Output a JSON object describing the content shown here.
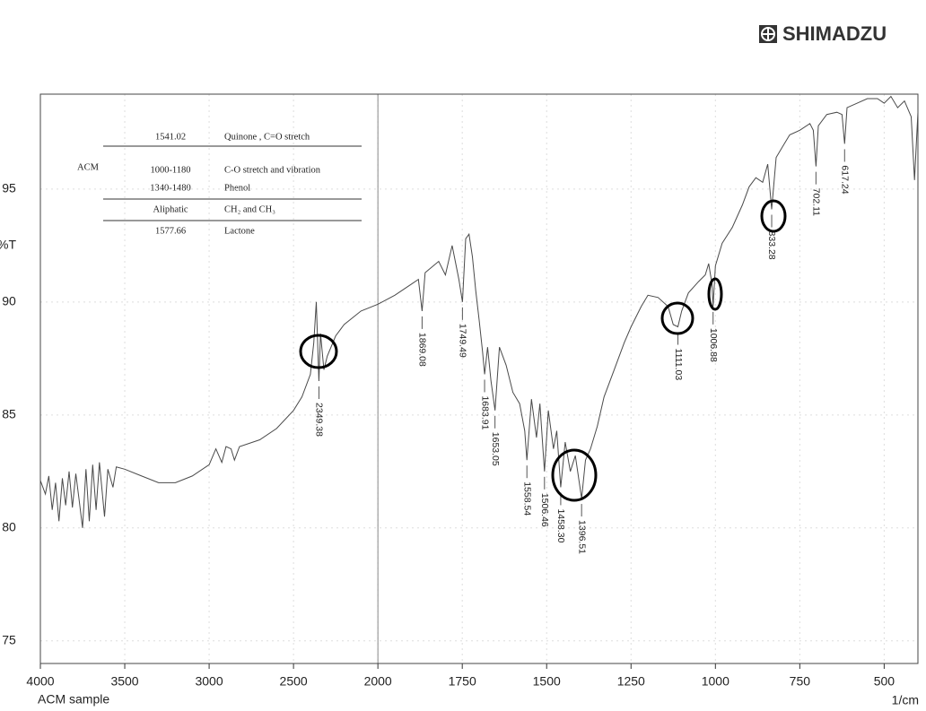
{
  "logo": "SHIMADZU",
  "chart_data": {
    "type": "line",
    "title": "ACM sample",
    "x_label": "1/cm",
    "y_label": "%T",
    "x": [
      4000,
      3970,
      3950,
      3930,
      3910,
      3890,
      3870,
      3850,
      3830,
      3810,
      3790,
      3770,
      3750,
      3730,
      3710,
      3690,
      3670,
      3650,
      3620,
      3600,
      3570,
      3550,
      3500,
      3400,
      3300,
      3200,
      3100,
      3000,
      2960,
      2925,
      2900,
      2870,
      2850,
      2820,
      2700,
      2600,
      2500,
      2450,
      2400,
      2380,
      2365,
      2349.38,
      2340,
      2320,
      2300,
      2250,
      2200,
      2100,
      2000,
      1950,
      1900,
      1880,
      1869.08,
      1860,
      1820,
      1800,
      1780,
      1760,
      1749.49,
      1740,
      1730,
      1720,
      1710,
      1700,
      1690,
      1683.91,
      1675,
      1665,
      1653.05,
      1640,
      1620,
      1600,
      1580,
      1565,
      1558.54,
      1545,
      1530,
      1520,
      1506.46,
      1495,
      1480,
      1470,
      1458.3,
      1445,
      1430,
      1415,
      1396.51,
      1385,
      1370,
      1350,
      1330,
      1300,
      1270,
      1250,
      1220,
      1200,
      1170,
      1140,
      1125,
      1111.03,
      1100,
      1080,
      1050,
      1030,
      1020,
      1010,
      1006.88,
      1000,
      980,
      950,
      920,
      900,
      880,
      860,
      845,
      833.28,
      820,
      800,
      780,
      750,
      720,
      710,
      702.11,
      695,
      670,
      640,
      625,
      617.24,
      610,
      580,
      550,
      520,
      500,
      480,
      460,
      440,
      420,
      410,
      400
    ],
    "values": [
      82.1,
      81.5,
      82.3,
      80.8,
      82.0,
      80.3,
      82.2,
      81.0,
      82.5,
      80.9,
      82.4,
      81.2,
      80.0,
      82.6,
      80.3,
      82.8,
      80.8,
      82.9,
      80.5,
      82.6,
      81.8,
      82.7,
      82.6,
      82.3,
      82.0,
      82.0,
      82.3,
      82.8,
      83.5,
      82.9,
      83.6,
      83.5,
      83.0,
      83.6,
      83.9,
      84.4,
      85.2,
      85.8,
      86.8,
      88.2,
      90.0,
      86.5,
      88.6,
      87.0,
      87.6,
      88.5,
      89.0,
      89.6,
      89.9,
      90.3,
      90.8,
      91.0,
      89.6,
      91.3,
      91.8,
      91.2,
      92.5,
      91.0,
      90.0,
      92.8,
      93.0,
      92.0,
      90.5,
      89.2,
      87.8,
      86.8,
      88.0,
      86.5,
      85.2,
      88.0,
      87.2,
      86.0,
      85.5,
      84.3,
      83.0,
      85.7,
      84.0,
      85.5,
      82.5,
      85.2,
      83.5,
      84.3,
      81.8,
      83.8,
      82.5,
      83.2,
      81.3,
      83.0,
      83.5,
      84.5,
      85.8,
      87.0,
      88.2,
      88.9,
      89.8,
      90.3,
      90.2,
      89.8,
      89.0,
      88.9,
      89.6,
      90.4,
      90.9,
      91.2,
      91.7,
      90.8,
      89.8,
      91.6,
      92.6,
      93.3,
      94.3,
      95.1,
      95.5,
      95.3,
      96.1,
      94.1,
      96.4,
      96.9,
      97.4,
      97.6,
      97.9,
      97.6,
      96.0,
      97.8,
      98.3,
      98.4,
      98.3,
      97.0,
      98.6,
      98.8,
      99.0,
      99.0,
      98.8,
      99.1,
      98.6,
      98.9,
      98.2,
      95.4,
      98.4
    ],
    "color": "#4a4a4a",
    "xlim": [
      4000,
      400
    ],
    "x_break": 2000,
    "x_scale_after_break": 2,
    "xticks": [
      4000,
      3500,
      3000,
      2500,
      2000,
      1750,
      1500,
      1250,
      1000,
      750,
      500
    ],
    "ylim": [
      74,
      99.2
    ],
    "yticks": [
      95,
      90,
      85,
      80,
      75
    ],
    "grid": true,
    "peaks": [
      2349.38,
      1869.08,
      1749.49,
      1683.91,
      1653.05,
      1558.54,
      1506.46,
      {
        "value": 1458.3,
        "label": "1458.30"
      },
      1396.51,
      1111.03,
      1006.88,
      833.28,
      702.11,
      617.24
    ]
  },
  "table": {
    "group": "ACM",
    "rows": [
      [
        "1541.02",
        "Quinone , C=O stretch"
      ],
      [
        "1000-1180",
        "C-O stretch and vibration"
      ],
      [
        "1340-1480",
        "Phenol"
      ],
      [
        "Aliphatic",
        "CH₂ and CH₃"
      ],
      [
        "1577.66",
        "Lactone"
      ]
    ]
  }
}
